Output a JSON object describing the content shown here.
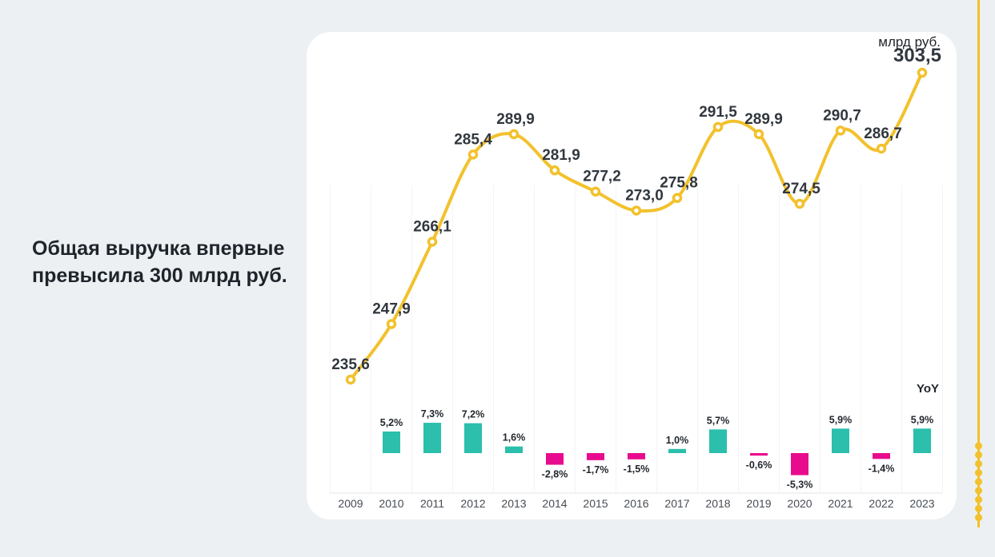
{
  "headline": {
    "text": "Общая выручка впервые\nпревысила 300 млрд руб."
  },
  "colors": {
    "background": "#EDF0F2",
    "card": "#FFFFFF",
    "accent_yellow": "#F2C12C",
    "positive_teal": "#2BBFAC",
    "negative_magenta": "#E90B8D",
    "text_dark": "#22272E",
    "value_label": "#31373E",
    "year_label": "#474D54",
    "axis_line": "#E4E6E9",
    "gridline": "#F3F4F6"
  },
  "chart_data": {
    "type": "line+bar",
    "title": "",
    "categories": [
      "2009",
      "2010",
      "2011",
      "2012",
      "2013",
      "2014",
      "2015",
      "2016",
      "2017",
      "2018",
      "2019",
      "2020",
      "2021",
      "2022",
      "2023"
    ],
    "series": [
      {
        "name": "млрд руб.",
        "type": "line",
        "color": "#F2C12C",
        "values": [
          235.6,
          247.9,
          266.1,
          285.4,
          289.9,
          281.9,
          277.2,
          273.0,
          275.8,
          291.5,
          289.9,
          274.5,
          290.7,
          286.7,
          303.5
        ],
        "labels": [
          "235,6",
          "247,9",
          "266,1",
          "285,4",
          "289,9",
          "281,9",
          "277,2",
          "273,0",
          "275,8",
          "291,5",
          "289,9",
          "274,5",
          "290,7",
          "286,7",
          "303,5"
        ]
      },
      {
        "name": "YoY",
        "type": "bar",
        "positive_color": "#2BBFAC",
        "negative_color": "#E90B8D",
        "values": [
          null,
          5.2,
          7.3,
          7.2,
          1.6,
          -2.8,
          -1.7,
          -1.5,
          1.0,
          5.7,
          -0.6,
          -5.3,
          5.9,
          -1.4,
          5.9
        ],
        "labels": [
          null,
          "5,2%",
          "7,3%",
          "7,2%",
          "1,6%",
          "-2,8%",
          "-1,7%",
          "-1,5%",
          "1,0%",
          "5,7%",
          "-0,6%",
          "-5,3%",
          "5,9%",
          "-1,4%",
          "5,9%"
        ]
      }
    ],
    "ylim": [
      235.6,
      303.5
    ],
    "grid": "vertical category separators",
    "legend": "none",
    "highlight_last_point": true
  }
}
